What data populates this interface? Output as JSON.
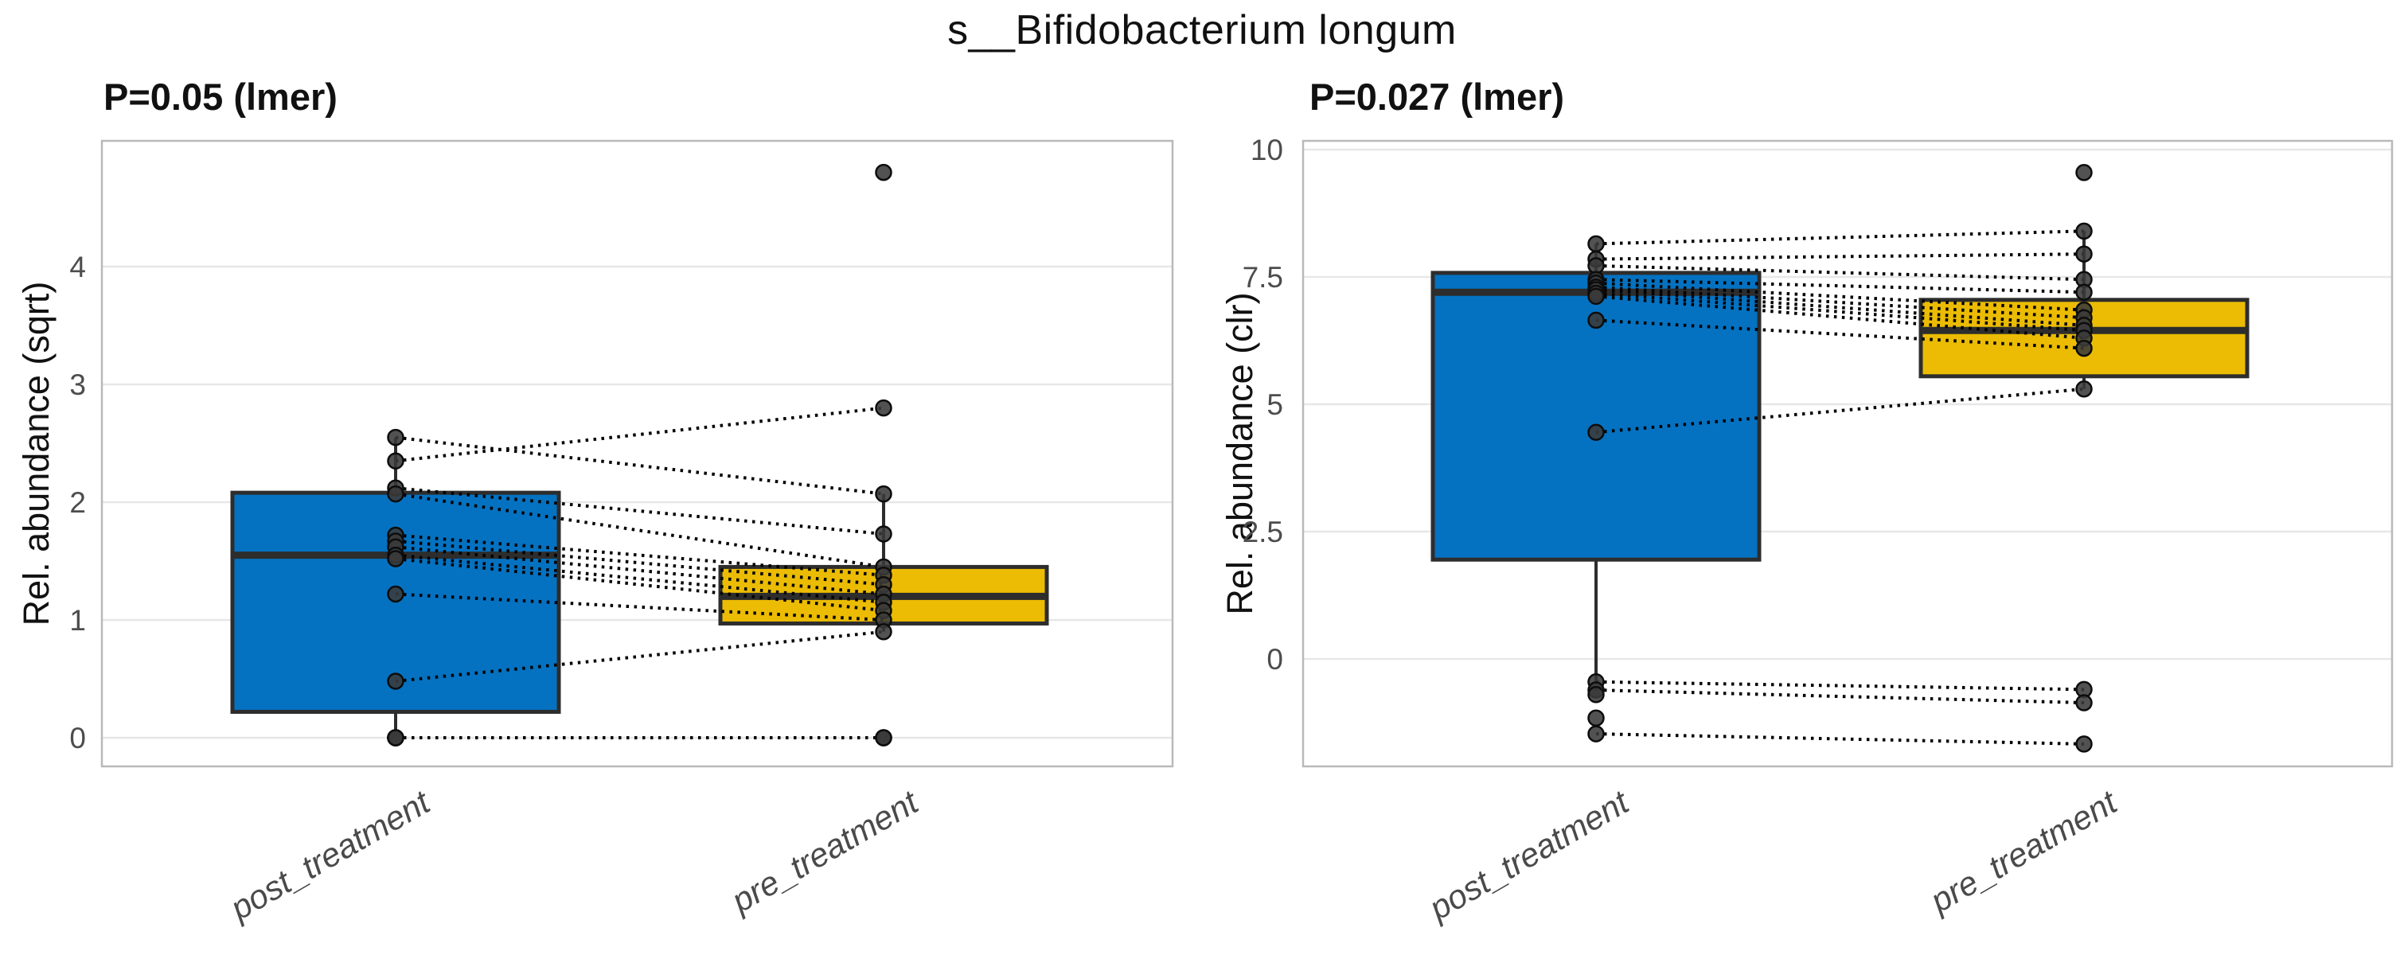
{
  "figure": {
    "title": "s__Bifidobacterium longum",
    "background": "#ffffff"
  },
  "colors": {
    "post_box_fill": "#0572C1",
    "pre_box_fill": "#EBBC03",
    "box_border": "#2d2d2d",
    "point_fill": "#3a3a3a",
    "point_stroke": "#0d0d0d",
    "pair_line": "#000000",
    "gridline": "#e7e7e7",
    "panel_border": "#b9b9b9",
    "tick_label": "#4d4d4d",
    "x_label": "#4a4a4a"
  },
  "chart_data": [
    {
      "type": "box",
      "panel": "left",
      "p_label": "P=0.05 (lmer)",
      "ylabel": "Rel. abundance (sqrt)",
      "categories": [
        "post_treatment",
        "pre_treatment"
      ],
      "ytick_labels": [
        "0",
        "1",
        "2",
        "3",
        "4"
      ],
      "ytick_values": [
        0,
        1,
        2,
        3,
        4
      ],
      "ylim": [
        -0.25,
        5.07
      ],
      "grid": "horizontal-major",
      "legend": "none",
      "boxes": [
        {
          "group": "post_treatment",
          "fill": "#0572C1",
          "q1": 0.22,
          "median": 1.55,
          "q3": 2.08,
          "whisker_low": 0.0,
          "whisker_high": 2.55
        },
        {
          "group": "pre_treatment",
          "fill": "#EBBC03",
          "q1": 0.97,
          "median": 1.2,
          "q3": 1.45,
          "whisker_low": 0.9,
          "whisker_high": 2.07
        }
      ],
      "paired_points": [
        [
          2.55,
          2.07
        ],
        [
          2.35,
          2.8
        ],
        [
          2.12,
          1.73
        ],
        [
          2.07,
          1.45
        ],
        [
          1.72,
          1.38
        ],
        [
          1.67,
          1.3
        ],
        [
          1.62,
          1.22
        ],
        [
          1.55,
          1.15
        ],
        [
          1.52,
          1.08
        ],
        [
          1.22,
          1.0
        ],
        [
          0.48,
          0.9
        ],
        [
          0.0,
          0.0
        ],
        [
          0.0,
          0.0
        ],
        [
          0.0,
          0.0
        ],
        [
          0.0,
          null
        ],
        [
          0.0,
          null
        ],
        [
          null,
          4.8
        ]
      ]
    },
    {
      "type": "box",
      "panel": "right",
      "p_label": "P=0.027 (lmer)",
      "ylabel": "Rel. abundance (clr)",
      "categories": [
        "post_treatment",
        "pre_treatment"
      ],
      "ytick_labels": [
        "0",
        "2.5",
        "5",
        "7.5",
        "10"
      ],
      "ytick_values": [
        0,
        2.5,
        5,
        7.5,
        10
      ],
      "ylim": [
        -2.11,
        10.17
      ],
      "grid": "horizontal-major",
      "legend": "none",
      "boxes": [
        {
          "group": "post_treatment",
          "fill": "#0572C1",
          "q1": 1.95,
          "median": 7.2,
          "q3": 7.58,
          "whisker_low": -0.45,
          "whisker_high": 8.15
        },
        {
          "group": "pre_treatment",
          "fill": "#EBBC03",
          "q1": 5.55,
          "median": 6.45,
          "q3": 7.05,
          "whisker_low": 5.3,
          "whisker_high": 8.4
        }
      ],
      "paired_points": [
        [
          8.15,
          8.4
        ],
        [
          7.85,
          7.95
        ],
        [
          7.72,
          7.45
        ],
        [
          7.45,
          7.2
        ],
        [
          7.38,
          6.85
        ],
        [
          7.3,
          6.7
        ],
        [
          7.25,
          6.55
        ],
        [
          7.18,
          6.45
        ],
        [
          7.12,
          6.3
        ],
        [
          6.65,
          6.1
        ],
        [
          4.45,
          5.3
        ],
        [
          -0.45,
          -0.6
        ],
        [
          -0.61,
          -0.86
        ],
        [
          -1.47,
          -1.67
        ],
        [
          -0.7,
          null
        ],
        [
          -1.16,
          null
        ],
        [
          null,
          9.55
        ]
      ]
    }
  ]
}
